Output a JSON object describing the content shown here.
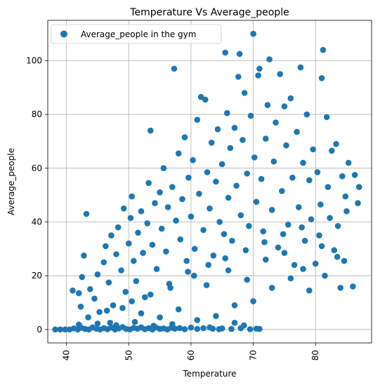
{
  "chart_data": {
    "type": "scatter",
    "title": "Temperature Vs Average_people",
    "xlabel": "Temperature",
    "ylabel": "Average_people",
    "xlim": [
      37,
      89
    ],
    "ylim": [
      -5,
      115
    ],
    "xticks": [
      40,
      50,
      60,
      70,
      80
    ],
    "yticks": [
      0,
      20,
      40,
      60,
      80,
      100
    ],
    "grid": true,
    "legend": {
      "position": "top-left",
      "entries": [
        "Average_people in the gym"
      ]
    },
    "point_color": "#1f77b4",
    "series": [
      {
        "name": "Average_people in the gym",
        "points": [
          [
            38.2,
            0
          ],
          [
            39.0,
            0
          ],
          [
            39.8,
            0
          ],
          [
            40.5,
            0
          ],
          [
            41.2,
            0.4
          ],
          [
            41.8,
            0
          ],
          [
            42.4,
            0.6
          ],
          [
            43.0,
            0.2
          ],
          [
            43.6,
            0
          ],
          [
            44.2,
            0.8
          ],
          [
            44.8,
            0.3
          ],
          [
            45.4,
            0
          ],
          [
            46.0,
            0.5
          ],
          [
            46.6,
            0.1
          ],
          [
            47.2,
            0.7
          ],
          [
            47.8,
            0
          ],
          [
            48.4,
            0.4
          ],
          [
            49.0,
            0.9
          ],
          [
            49.6,
            0.2
          ],
          [
            50.2,
            0
          ],
          [
            50.8,
            0.6
          ],
          [
            51.4,
            0.3
          ],
          [
            52.0,
            0.8
          ],
          [
            52.6,
            0.1
          ],
          [
            53.2,
            0.5
          ],
          [
            53.8,
            0
          ],
          [
            54.4,
            0.7
          ],
          [
            55.0,
            0.2
          ],
          [
            55.6,
            0.4
          ],
          [
            56.2,
            0
          ],
          [
            56.8,
            0.6
          ],
          [
            57.4,
            0.3
          ],
          [
            58.2,
            0.5
          ],
          [
            59.0,
            0.1
          ],
          [
            60.0,
            0.7
          ],
          [
            61.0,
            0.2
          ],
          [
            62.0,
            0.5
          ],
          [
            63.5,
            0.3
          ],
          [
            65.0,
            0.4
          ],
          [
            66.5,
            0.2
          ],
          [
            68.0,
            0.5
          ],
          [
            69.5,
            0.1
          ],
          [
            70.5,
            0.3
          ],
          [
            71.0,
            0.2
          ],
          [
            63.0,
            0.8
          ],
          [
            64.5,
            0.1
          ],
          [
            67.0,
            2.5
          ],
          [
            68.5,
            1.5
          ],
          [
            42.0,
            1.8
          ],
          [
            45.0,
            2.2
          ],
          [
            48.0,
            1.6
          ],
          [
            51.0,
            2.8
          ],
          [
            54.0,
            1.4
          ],
          [
            57.0,
            2.0
          ],
          [
            41.0,
            14.5
          ],
          [
            42.0,
            13.5
          ],
          [
            42.5,
            19.5
          ],
          [
            42.8,
            27.5
          ],
          [
            43.2,
            43.0
          ],
          [
            42.3,
            8.5
          ],
          [
            43.8,
            15.0
          ],
          [
            44.5,
            11.5
          ],
          [
            45.0,
            20.5
          ],
          [
            45.3,
            6.5
          ],
          [
            46.0,
            25.0
          ],
          [
            46.3,
            31.0
          ],
          [
            46.8,
            17.5
          ],
          [
            47.2,
            35.0
          ],
          [
            47.5,
            9.0
          ],
          [
            48.0,
            28.0
          ],
          [
            48.3,
            38.0
          ],
          [
            48.8,
            22.0
          ],
          [
            49.2,
            45.0
          ],
          [
            49.5,
            14.0
          ],
          [
            50.0,
            32.0
          ],
          [
            50.3,
            41.5
          ],
          [
            50.5,
            49.5
          ],
          [
            50.8,
            25.5
          ],
          [
            51.2,
            18.0
          ],
          [
            51.5,
            36.0
          ],
          [
            52.0,
            44.0
          ],
          [
            52.3,
            28.5
          ],
          [
            52.6,
            12.0
          ],
          [
            53.0,
            39.5
          ],
          [
            53.2,
            54.5
          ],
          [
            53.5,
            74.0
          ],
          [
            53.8,
            31.5
          ],
          [
            54.2,
            47.0
          ],
          [
            54.5,
            22.5
          ],
          [
            55.0,
            51.0
          ],
          [
            55.3,
            37.5
          ],
          [
            55.6,
            60.0
          ],
          [
            56.0,
            29.0
          ],
          [
            56.3,
            45.5
          ],
          [
            56.7,
            15.5
          ],
          [
            57.0,
            53.0
          ],
          [
            57.3,
            97.0
          ],
          [
            57.6,
            40.5
          ],
          [
            58.0,
            65.5
          ],
          [
            58.3,
            33.5
          ],
          [
            58.6,
            48.5
          ],
          [
            59.0,
            71.5
          ],
          [
            59.3,
            25.5
          ],
          [
            59.6,
            56.5
          ],
          [
            60.0,
            42.0
          ],
          [
            60.3,
            63.0
          ],
          [
            60.6,
            30.0
          ],
          [
            61.0,
            78.0
          ],
          [
            61.3,
            50.5
          ],
          [
            61.6,
            86.5
          ],
          [
            62.0,
            37.0
          ],
          [
            62.3,
            85.5
          ],
          [
            62.6,
            58.5
          ],
          [
            63.0,
            45.0
          ],
          [
            63.3,
            69.5
          ],
          [
            63.6,
            27.5
          ],
          [
            64.0,
            55.0
          ],
          [
            64.3,
            74.5
          ],
          [
            64.6,
            40.0
          ],
          [
            65.0,
            61.5
          ],
          [
            65.3,
            35.5
          ],
          [
            65.5,
            103.0
          ],
          [
            65.8,
            80.5
          ],
          [
            66.0,
            49.0
          ],
          [
            66.3,
            67.5
          ],
          [
            66.6,
            33.0
          ],
          [
            67.0,
            75.0
          ],
          [
            67.3,
            53.5
          ],
          [
            67.6,
            94.0
          ],
          [
            67.8,
            102.5
          ],
          [
            68.0,
            42.5
          ],
          [
            68.3,
            70.5
          ],
          [
            68.6,
            88.0
          ],
          [
            69.0,
            58.0
          ],
          [
            69.3,
            38.5
          ],
          [
            69.6,
            79.5
          ],
          [
            70.0,
            110.0
          ],
          [
            70.2,
            64.0
          ],
          [
            70.5,
            47.5
          ],
          [
            70.8,
            94.5
          ],
          [
            71.0,
            97.0
          ],
          [
            71.3,
            56.0
          ],
          [
            71.6,
            36.5
          ],
          [
            72.0,
            71.0
          ],
          [
            72.3,
            83.5
          ],
          [
            72.6,
            100.5
          ],
          [
            73.0,
            44.5
          ],
          [
            73.3,
            62.5
          ],
          [
            73.6,
            77.0
          ],
          [
            74.0,
            30.5
          ],
          [
            74.3,
            95.0
          ],
          [
            74.6,
            51.5
          ],
          [
            75.0,
            83.0
          ],
          [
            75.3,
            68.5
          ],
          [
            75.6,
            39.0
          ],
          [
            76.0,
            86.0
          ],
          [
            76.3,
            56.5
          ],
          [
            76.6,
            24.0
          ],
          [
            77.0,
            73.5
          ],
          [
            77.3,
            45.5
          ],
          [
            77.6,
            97.5
          ],
          [
            78.0,
            62.0
          ],
          [
            78.3,
            33.0
          ],
          [
            78.6,
            80.0
          ],
          [
            79.0,
            55.5
          ],
          [
            79.3,
            41.0
          ],
          [
            79.6,
            67.0
          ],
          [
            80.0,
            24.5
          ],
          [
            80.3,
            58.5
          ],
          [
            80.6,
            35.0
          ],
          [
            81.0,
            93.5
          ],
          [
            81.2,
            104.0
          ],
          [
            81.5,
            20.0
          ],
          [
            81.8,
            79.0
          ],
          [
            82.0,
            53.0
          ],
          [
            82.3,
            41.5
          ],
          [
            82.6,
            66.5
          ],
          [
            83.0,
            29.5
          ],
          [
            83.3,
            69.0
          ],
          [
            83.6,
            38.5
          ],
          [
            84.0,
            15.5
          ],
          [
            84.3,
            57.0
          ],
          [
            84.6,
            25.5
          ],
          [
            85.0,
            44.0
          ],
          [
            85.3,
            62.0
          ],
          [
            86.0,
            16.0
          ],
          [
            86.3,
            57.5
          ],
          [
            87.0,
            53.0
          ],
          [
            49.0,
            8.0
          ],
          [
            52.0,
            6.0
          ],
          [
            55.0,
            4.5
          ],
          [
            58.0,
            7.5
          ],
          [
            61.0,
            3.5
          ],
          [
            64.0,
            5.0
          ],
          [
            67.0,
            9.0
          ],
          [
            70.0,
            10.5
          ],
          [
            73.0,
            15.5
          ],
          [
            76.0,
            19.0
          ],
          [
            79.0,
            14.5
          ],
          [
            60.5,
            20.0
          ],
          [
            62.5,
            16.5
          ],
          [
            66.0,
            22.0
          ],
          [
            69.0,
            18.5
          ],
          [
            72.0,
            26.0
          ],
          [
            75.0,
            28.5
          ],
          [
            78.0,
            22.5
          ],
          [
            81.0,
            31.0
          ],
          [
            83.5,
            27.0
          ],
          [
            47.0,
            2.5
          ],
          [
            43.5,
            4.5
          ],
          [
            46.5,
            7.0
          ],
          [
            50.5,
            10.5
          ],
          [
            53.5,
            13.0
          ],
          [
            56.5,
            17.0
          ],
          [
            59.5,
            21.5
          ],
          [
            62.8,
            24.0
          ],
          [
            65.5,
            26.5
          ],
          [
            68.8,
            29.5
          ],
          [
            71.8,
            32.5
          ],
          [
            74.8,
            35.5
          ],
          [
            77.8,
            38.0
          ],
          [
            80.8,
            46.5
          ],
          [
            84.8,
            49.5
          ],
          [
            86.8,
            47.0
          ]
        ]
      }
    ]
  }
}
